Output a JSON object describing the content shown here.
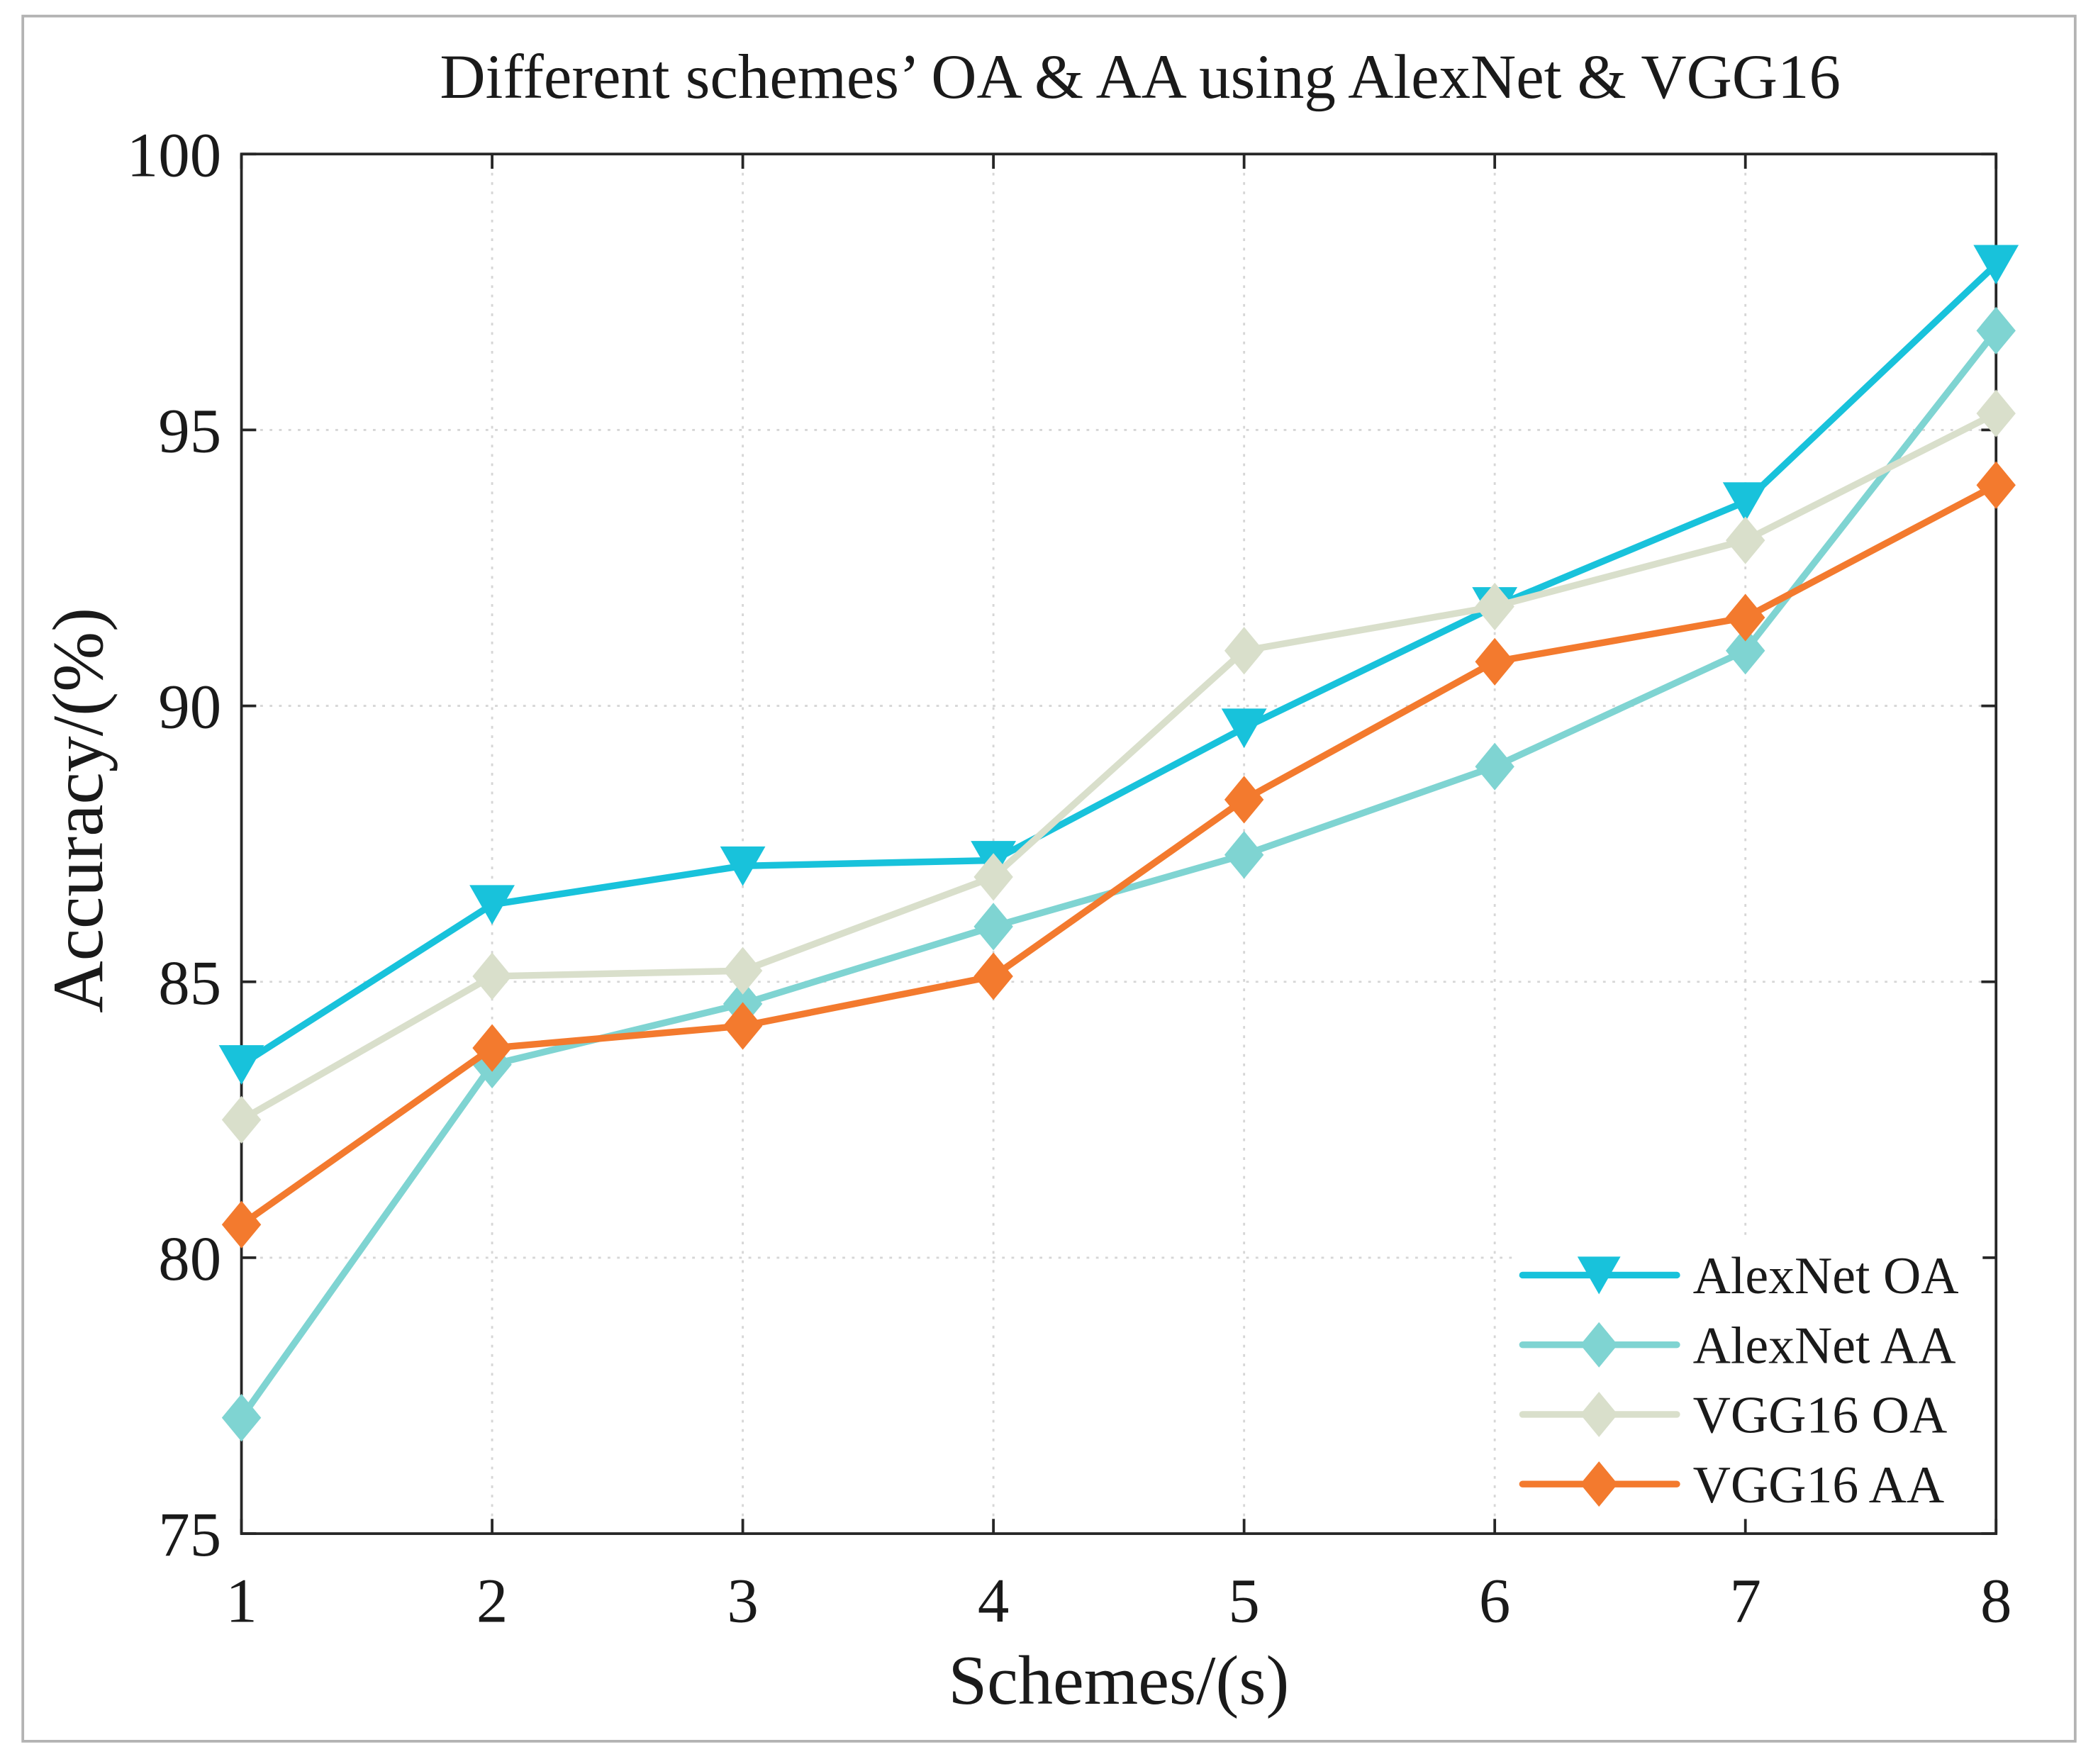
{
  "chart_data": {
    "type": "line",
    "title": "Different schemes’ OA & AA using AlexNet & VGG16",
    "xlabel": "Schemes/(s)",
    "ylabel": "Accuracy/(%)",
    "x": [
      1,
      2,
      3,
      4,
      5,
      6,
      7,
      8
    ],
    "xlim": [
      1,
      8
    ],
    "ylim": [
      75,
      100
    ],
    "yticks": [
      75,
      80,
      85,
      90,
      95,
      100
    ],
    "grid": true,
    "legend_position": "bottom-right",
    "series": [
      {
        "name": "AlexNet OA",
        "color": "#18C2DB",
        "marker": "triangle-down",
        "values": [
          83.5,
          86.4,
          87.1,
          87.2,
          89.6,
          91.8,
          93.7,
          98.0
        ]
      },
      {
        "name": "AlexNet AA",
        "color": "#7FD4D2",
        "marker": "diamond",
        "values": [
          77.1,
          83.5,
          84.6,
          86.0,
          87.3,
          88.9,
          91.0,
          96.8
        ]
      },
      {
        "name": "VGG16 OA",
        "color": "#D9DFCB",
        "marker": "diamond",
        "values": [
          82.5,
          85.1,
          85.2,
          86.9,
          91.0,
          91.8,
          93.0,
          95.3
        ]
      },
      {
        "name": "VGG16 AA",
        "color": "#F37A2E",
        "marker": "diamond",
        "values": [
          80.6,
          83.8,
          84.2,
          85.1,
          88.3,
          90.8,
          91.6,
          94.0
        ]
      }
    ]
  }
}
